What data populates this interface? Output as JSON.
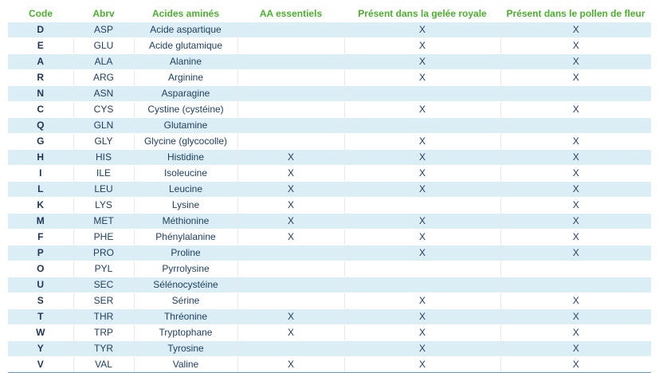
{
  "headers": [
    "Code",
    "Abrv",
    "Acides aminés",
    "AA essentiels",
    "Présent dans la gelée royale",
    "Présent dans le pollen de fleur"
  ],
  "rows": [
    {
      "code": "D",
      "abrv": "ASP",
      "name": "Acide aspartique",
      "essential": "",
      "royal_jelly": "X",
      "pollen": "X"
    },
    {
      "code": "E",
      "abrv": "GLU",
      "name": "Acide glutamique",
      "essential": "",
      "royal_jelly": "X",
      "pollen": "X"
    },
    {
      "code": "A",
      "abrv": "ALA",
      "name": "Alanine",
      "essential": "",
      "royal_jelly": "X",
      "pollen": "X"
    },
    {
      "code": "R",
      "abrv": "ARG",
      "name": "Arginine",
      "essential": "",
      "royal_jelly": "X",
      "pollen": "X"
    },
    {
      "code": "N",
      "abrv": "ASN",
      "name": "Asparagine",
      "essential": "",
      "royal_jelly": "",
      "pollen": ""
    },
    {
      "code": "C",
      "abrv": "CYS",
      "name": "Cystine (cystéine)",
      "essential": "",
      "royal_jelly": "X",
      "pollen": "X"
    },
    {
      "code": "Q",
      "abrv": "GLN",
      "name": "Glutamine",
      "essential": "",
      "royal_jelly": "",
      "pollen": ""
    },
    {
      "code": "G",
      "abrv": "GLY",
      "name": "Glycine (glycocolle)",
      "essential": "",
      "royal_jelly": "X",
      "pollen": "X"
    },
    {
      "code": "H",
      "abrv": "HIS",
      "name": "Histidine",
      "essential": "X",
      "royal_jelly": "X",
      "pollen": "X"
    },
    {
      "code": "I",
      "abrv": "ILE",
      "name": "Isoleucine",
      "essential": "X",
      "royal_jelly": "X",
      "pollen": "X"
    },
    {
      "code": "L",
      "abrv": "LEU",
      "name": "Leucine",
      "essential": "X",
      "royal_jelly": "X",
      "pollen": "X"
    },
    {
      "code": "K",
      "abrv": "LYS",
      "name": "Lysine",
      "essential": "X",
      "royal_jelly": "",
      "pollen": "X"
    },
    {
      "code": "M",
      "abrv": "MET",
      "name": "Méthionine",
      "essential": "X",
      "royal_jelly": "X",
      "pollen": "X"
    },
    {
      "code": "F",
      "abrv": "PHE",
      "name": "Phénylalanine",
      "essential": "X",
      "royal_jelly": "X",
      "pollen": "X"
    },
    {
      "code": "P",
      "abrv": "PRO",
      "name": "Proline",
      "essential": "",
      "royal_jelly": "X",
      "pollen": "X"
    },
    {
      "code": "O",
      "abrv": "PYL",
      "name": "Pyrrolysine",
      "essential": "",
      "royal_jelly": "",
      "pollen": ""
    },
    {
      "code": "U",
      "abrv": "SEC",
      "name": "Sélénocystéine",
      "essential": "",
      "royal_jelly": "",
      "pollen": ""
    },
    {
      "code": "S",
      "abrv": "SER",
      "name": "Sérine",
      "essential": "",
      "royal_jelly": "X",
      "pollen": "X"
    },
    {
      "code": "T",
      "abrv": "THR",
      "name": "Thréonine",
      "essential": "X",
      "royal_jelly": "X",
      "pollen": "X"
    },
    {
      "code": "W",
      "abrv": "TRP",
      "name": "Tryptophane",
      "essential": "X",
      "royal_jelly": "X",
      "pollen": "X"
    },
    {
      "code": "Y",
      "abrv": "TYR",
      "name": "Tyrosine",
      "essential": "",
      "royal_jelly": "X",
      "pollen": "X"
    },
    {
      "code": "V",
      "abrv": "VAL",
      "name": "Valine",
      "essential": "X",
      "royal_jelly": "X",
      "pollen": "X"
    }
  ],
  "colors": {
    "header_text": "#4caf2f",
    "band": "#dbeef5",
    "cell_text": "#1f3f63",
    "bottom_border": "#5b9bd5"
  }
}
